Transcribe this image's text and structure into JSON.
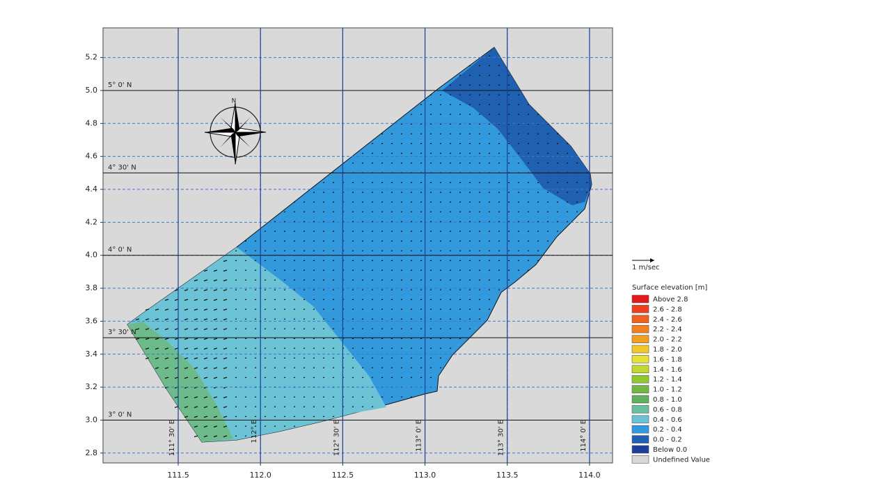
{
  "chart_data": {
    "type": "contour",
    "xlim": [
      111.043,
      114.14
    ],
    "ylim": [
      2.74,
      5.38
    ],
    "xticks": [
      111.5,
      {
        "value": 112,
        "label": "112.0"
      },
      112.5,
      {
        "value": 113,
        "label": "113.0"
      },
      113.5,
      {
        "value": 114,
        "label": "114.0"
      }
    ],
    "yticks": [
      2.8,
      {
        "value": 3,
        "label": "3.0"
      },
      3.2,
      3.4,
      3.6,
      3.8,
      {
        "value": 4,
        "label": "4.0"
      },
      4.2,
      4.4,
      4.6,
      4.8,
      {
        "value": 5,
        "label": "5.0"
      },
      5.2
    ],
    "grid": true,
    "graticule": {
      "lat": [
        {
          "value": 3,
          "label": "3° 0' N"
        },
        {
          "value": 3.5,
          "label": "3° 30' N"
        },
        {
          "value": 4,
          "label": "4° 0' N"
        },
        {
          "value": 4.5,
          "label": "4° 30' N"
        },
        {
          "value": 5,
          "label": "5° 0' N"
        }
      ],
      "lon": [
        {
          "value": 111.5,
          "label": "111° 30' E"
        },
        {
          "value": 112,
          "label": "112° E"
        },
        {
          "value": 112.5,
          "label": "112° 30' E"
        },
        {
          "value": 113,
          "label": "113° 0' E"
        },
        {
          "value": 113.5,
          "label": "113° 30' E"
        },
        {
          "value": 114,
          "label": "114° 0' E"
        }
      ]
    },
    "compass_label": "N",
    "vector_scale": "1 m/sec",
    "legend": {
      "title": "Surface elevation [m]",
      "items": [
        {
          "label": "Above 2.8",
          "color": "#e31a1c"
        },
        {
          "label": "2.6 - 2.8",
          "color": "#ee4020"
        },
        {
          "label": "2.4 - 2.6",
          "color": "#f06020"
        },
        {
          "label": "2.2 - 2.4",
          "color": "#f08020"
        },
        {
          "label": "2.0 - 2.2",
          "color": "#f0a020"
        },
        {
          "label": "1.8 - 2.0",
          "color": "#f2c828"
        },
        {
          "label": "1.6 - 1.8",
          "color": "#e8e030"
        },
        {
          "label": "1.4 - 1.6",
          "color": "#c0d830"
        },
        {
          "label": "1.2 - 1.4",
          "color": "#90c830"
        },
        {
          "label": "1.0 - 1.2",
          "color": "#70b840"
        },
        {
          "label": "0.8 - 1.0",
          "color": "#60b060"
        },
        {
          "label": "0.6 - 0.8",
          "color": "#66c0a0"
        },
        {
          "label": "0.4 - 0.6",
          "color": "#6cc3d8"
        },
        {
          "label": "0.2 - 0.4",
          "color": "#3399dd"
        },
        {
          "label": "0.0 - 0.2",
          "color": "#2060b0"
        },
        {
          "label": "Below 0.0",
          "color": "#1a3f99"
        },
        {
          "label": "Undefined Value",
          "color": "#d8d8d8"
        }
      ]
    }
  }
}
